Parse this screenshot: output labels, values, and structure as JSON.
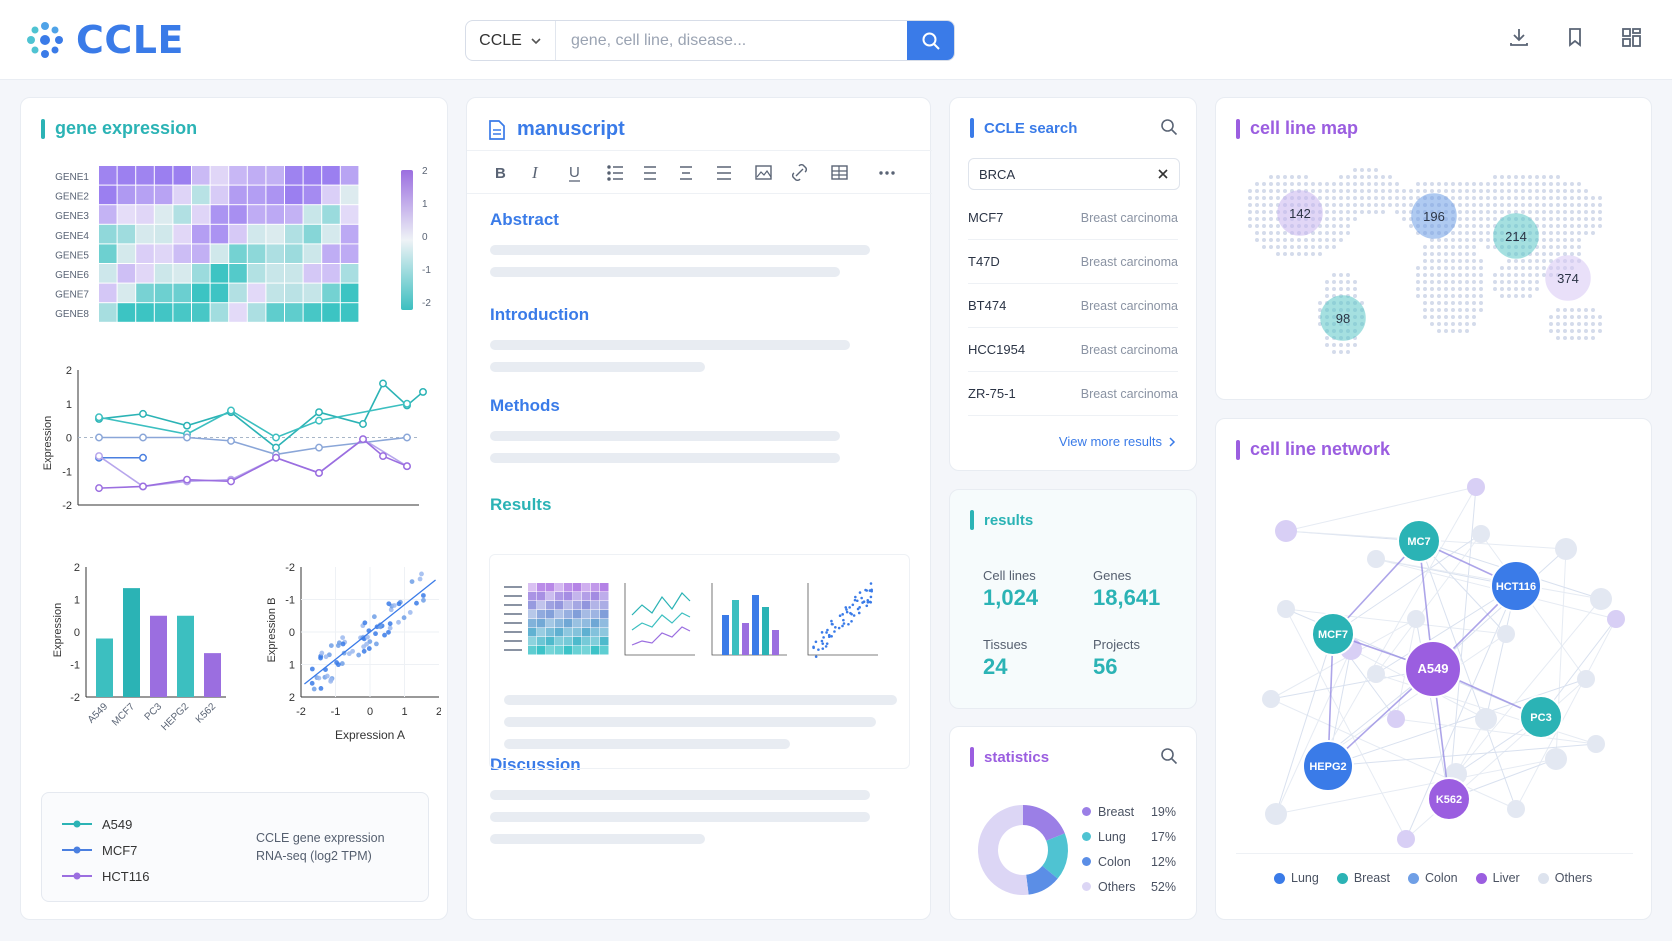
{
  "header": {
    "logo": "CCLE",
    "search_scope": "CCLE",
    "search_placeholder": "gene, cell line, disease..."
  },
  "gene_expression": {
    "title": "gene expression",
    "heatmap": {
      "genes": [
        "GENE1",
        "GENE2",
        "GENE3",
        "GENE4",
        "GENE5",
        "GENE6",
        "GENE7",
        "GENE8"
      ],
      "scale": [
        "2",
        "1",
        "0",
        "-1",
        "-2"
      ]
    },
    "line_axis": [
      "2",
      "1",
      "0",
      "-1",
      "-2"
    ],
    "ylabel": "Expression",
    "bar": {
      "categories": [
        "A549",
        "MCF7",
        "PC3",
        "HEPG2",
        "K562"
      ],
      "values": [
        -0.2,
        1.35,
        0.5,
        0.5,
        -0.65
      ],
      "colors": [
        "#3cbfc0",
        "#2bb3b5",
        "#9b6ee0",
        "#3cbfc0",
        "#9b6ee0"
      ]
    },
    "scatter": {
      "xlabel": "Expression A",
      "ylabel": "Expression B",
      "ticks": [
        "-2",
        "-1",
        "0",
        "1",
        "2"
      ]
    },
    "legend": [
      {
        "name": "A549",
        "color": "#2bb3b5"
      },
      {
        "name": "MCF7",
        "color": "#4a7fe0"
      },
      {
        "name": "HCT116",
        "color": "#9b6ee0"
      }
    ],
    "note1": "CCLE gene expression",
    "note2": "RNA-seq (log2 TPM)"
  },
  "manuscript": {
    "title": "manuscript",
    "sections": [
      "Abstract",
      "Introduction",
      "Methods",
      "Results",
      "Discussion"
    ]
  },
  "ccle_search": {
    "title": "CCLE search",
    "query": "BRCA",
    "rows": [
      {
        "name": "MCF7",
        "type": "Breast carcinoma"
      },
      {
        "name": "T47D",
        "type": "Breast carcinoma"
      },
      {
        "name": "BT474",
        "type": "Breast carcinoma"
      },
      {
        "name": "HCC1954",
        "type": "Breast carcinoma"
      },
      {
        "name": "ZR-75-1",
        "type": "Breast carcinoma"
      }
    ],
    "more": "View more results"
  },
  "results": {
    "title": "results",
    "stats": [
      {
        "label": "Cell lines",
        "value": "1,024"
      },
      {
        "label": "Genes",
        "value": "18,641"
      },
      {
        "label": "Tissues",
        "value": "24"
      },
      {
        "label": "Projects",
        "value": "56"
      }
    ]
  },
  "statistics": {
    "title": "statistics",
    "slices": [
      {
        "name": "Breast",
        "pct": "19%",
        "value": 19,
        "color": "#9b7fe6"
      },
      {
        "name": "Lung",
        "pct": "17%",
        "value": 17,
        "color": "#4fc3d2"
      },
      {
        "name": "Colon",
        "pct": "12%",
        "value": 12,
        "color": "#5b8ee6"
      },
      {
        "name": "Others",
        "pct": "52%",
        "value": 52,
        "color": "#dcd6f5"
      }
    ]
  },
  "map": {
    "title": "cell line map",
    "bubbles": [
      {
        "v": "142",
        "c": "#c9b6f0"
      },
      {
        "v": "196",
        "c": "#6f9fe6"
      },
      {
        "v": "214",
        "c": "#5cc8c8"
      },
      {
        "v": "374",
        "c": "#d8c8f5"
      },
      {
        "v": "98",
        "c": "#5cc8c8"
      }
    ]
  },
  "network": {
    "title": "cell line network",
    "nodes": [
      {
        "id": "MC7",
        "c": "#2bb3b5"
      },
      {
        "id": "HCT116",
        "c": "#3a7be8"
      },
      {
        "id": "MCF7",
        "c": "#2bb3b5"
      },
      {
        "id": "A549",
        "c": "#9b5ee0"
      },
      {
        "id": "PC3",
        "c": "#2bb3b5"
      },
      {
        "id": "HEPG2",
        "c": "#3a7be8"
      },
      {
        "id": "K562",
        "c": "#9b5ee0"
      }
    ],
    "legend": [
      {
        "name": "Lung",
        "c": "#3a7be8"
      },
      {
        "name": "Breast",
        "c": "#2bb3b5"
      },
      {
        "name": "Colon",
        "c": "#6f9fe6"
      },
      {
        "name": "Liver",
        "c": "#9b5ee0"
      },
      {
        "name": "Others",
        "c": "#dde3ee"
      }
    ]
  }
}
